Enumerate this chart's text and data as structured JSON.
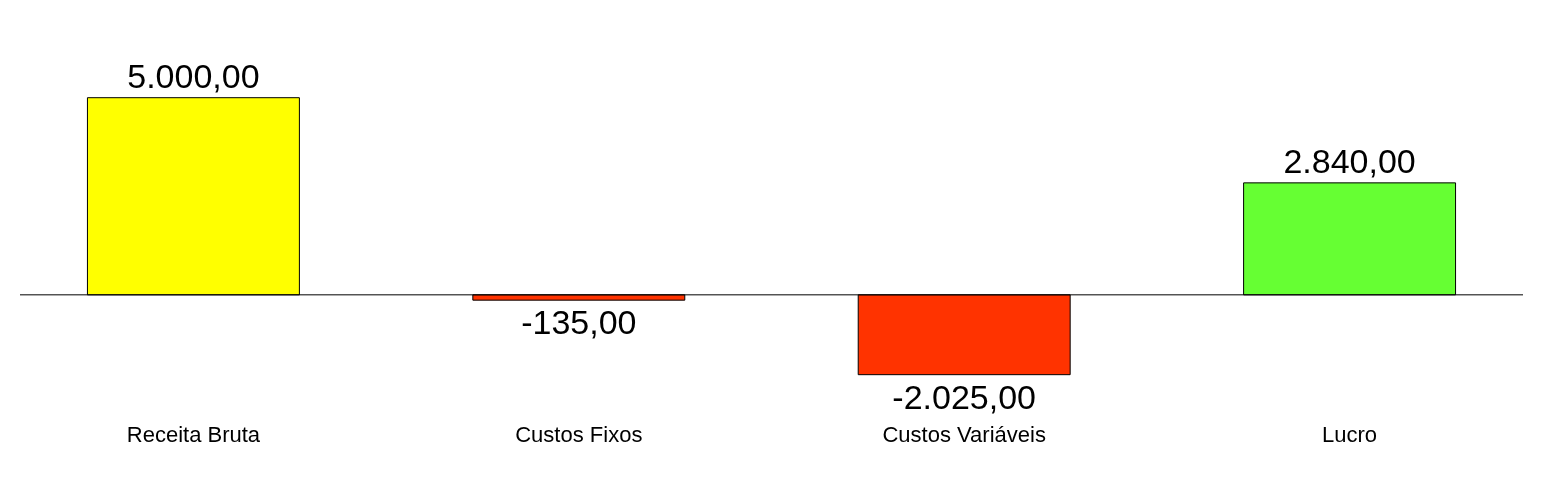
{
  "chart_data": {
    "type": "bar",
    "categories": [
      "Receita Bruta",
      "Custos Fixos",
      "Custos Variáveis",
      "Lucro"
    ],
    "values": [
      5000,
      -135,
      -2025,
      2840
    ],
    "colors": [
      "#ffff00",
      "#ff3300",
      "#ff3300",
      "#66ff33"
    ],
    "value_labels": [
      "5.000,00",
      "-135,00",
      "-2.025,00",
      "2.840,00"
    ],
    "legend": false
  }
}
